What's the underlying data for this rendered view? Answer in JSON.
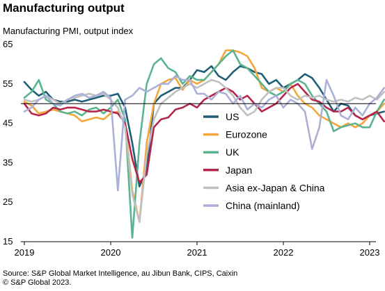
{
  "title": "Manufacturing output",
  "subtitle": "Manufacturing  PMI, output index",
  "source_line1": "Source: S&P Global Market Intelligence, au Jibun Bank, CIPS, Caixin",
  "source_line2": "© S&P Global 2023.",
  "chart_data": {
    "type": "line",
    "ylim": [
      15,
      65
    ],
    "yticks": [
      15,
      25,
      35,
      45,
      55,
      65
    ],
    "xlim": [
      "2019-01",
      "2023-03"
    ],
    "xticks": [
      "2019",
      "2020",
      "2021",
      "2022",
      "2023"
    ],
    "reference_line": 50,
    "legend_position": "lower-right",
    "grid": false,
    "series": [
      {
        "name": "US",
        "color": "#1f5f77",
        "values": [
          [
            0,
            55.5
          ],
          [
            1,
            53.5
          ],
          [
            2,
            52
          ],
          [
            3,
            53
          ],
          [
            4,
            51
          ],
          [
            5,
            50.5
          ],
          [
            6,
            50.5
          ],
          [
            7,
            51
          ],
          [
            8,
            50.5
          ],
          [
            9,
            51
          ],
          [
            10,
            51.5
          ],
          [
            11,
            52
          ],
          [
            12,
            52
          ],
          [
            13,
            52.5
          ],
          [
            14,
            49
          ],
          [
            15,
            40
          ],
          [
            16,
            29
          ],
          [
            17,
            33
          ],
          [
            18,
            50
          ],
          [
            19,
            52
          ],
          [
            20,
            53
          ],
          [
            21,
            54
          ],
          [
            22,
            54
          ],
          [
            23,
            56
          ],
          [
            24,
            58.5
          ],
          [
            25,
            58
          ],
          [
            26,
            59.5
          ],
          [
            27,
            57
          ],
          [
            28,
            56
          ],
          [
            29,
            58
          ],
          [
            30,
            59.5
          ],
          [
            31,
            59
          ],
          [
            32,
            58
          ],
          [
            33,
            57.5
          ],
          [
            34,
            55
          ],
          [
            35,
            56
          ],
          [
            36,
            54
          ],
          [
            37,
            55
          ],
          [
            38,
            56
          ],
          [
            39,
            57.5
          ],
          [
            40,
            56.5
          ],
          [
            41,
            54
          ],
          [
            42,
            51
          ],
          [
            43,
            48
          ],
          [
            44,
            50
          ],
          [
            45,
            49.5
          ],
          [
            46,
            47
          ],
          [
            47,
            46
          ],
          [
            48,
            47
          ],
          [
            49,
            47.5
          ],
          [
            50,
            48
          ]
        ]
      },
      {
        "name": "Eurozone",
        "color": "#f5a53a",
        "values": [
          [
            0,
            50.5
          ],
          [
            1,
            49.5
          ],
          [
            2,
            47.5
          ],
          [
            3,
            48
          ],
          [
            4,
            48.5
          ],
          [
            5,
            48
          ],
          [
            6,
            47.5
          ],
          [
            7,
            47
          ],
          [
            8,
            45.5
          ],
          [
            9,
            46
          ],
          [
            10,
            46.5
          ],
          [
            11,
            46
          ],
          [
            12,
            47.5
          ],
          [
            13,
            48
          ],
          [
            14,
            45
          ],
          [
            15,
            28
          ],
          [
            16,
            20
          ],
          [
            17,
            40
          ],
          [
            18,
            50
          ],
          [
            19,
            55
          ],
          [
            20,
            56
          ],
          [
            21,
            56.5
          ],
          [
            22,
            53.5
          ],
          [
            23,
            56
          ],
          [
            24,
            55
          ],
          [
            25,
            56
          ],
          [
            26,
            58
          ],
          [
            27,
            60
          ],
          [
            28,
            63.5
          ],
          [
            29,
            63.5
          ],
          [
            30,
            63
          ],
          [
            31,
            62
          ],
          [
            32,
            59
          ],
          [
            33,
            54
          ],
          [
            34,
            53
          ],
          [
            35,
            54
          ],
          [
            36,
            53
          ],
          [
            37,
            55
          ],
          [
            38,
            52
          ],
          [
            39,
            50
          ],
          [
            40,
            49
          ],
          [
            41,
            47
          ],
          [
            42,
            46
          ],
          [
            43,
            45
          ],
          [
            44,
            44
          ],
          [
            45,
            45
          ],
          [
            46,
            44
          ],
          [
            47,
            45
          ],
          [
            48,
            47
          ],
          [
            49,
            48
          ],
          [
            50,
            50
          ]
        ]
      },
      {
        "name": "UK",
        "color": "#5ab58e",
        "values": [
          [
            0,
            51.5
          ],
          [
            1,
            53
          ],
          [
            2,
            56
          ],
          [
            3,
            51
          ],
          [
            4,
            50
          ],
          [
            5,
            48
          ],
          [
            6,
            47.5
          ],
          [
            7,
            48
          ],
          [
            8,
            47
          ],
          [
            9,
            48.5
          ],
          [
            10,
            49
          ],
          [
            11,
            47.5
          ],
          [
            12,
            49
          ],
          [
            13,
            51
          ],
          [
            14,
            46
          ],
          [
            15,
            16
          ],
          [
            16,
            40
          ],
          [
            17,
            55
          ],
          [
            18,
            60
          ],
          [
            19,
            61.5
          ],
          [
            20,
            59
          ],
          [
            21,
            58
          ],
          [
            22,
            55
          ],
          [
            23,
            57
          ],
          [
            24,
            56
          ],
          [
            25,
            56
          ],
          [
            26,
            58
          ],
          [
            27,
            60
          ],
          [
            28,
            62
          ],
          [
            29,
            63.5
          ],
          [
            30,
            60
          ],
          [
            31,
            59
          ],
          [
            32,
            57
          ],
          [
            33,
            55
          ],
          [
            34,
            53
          ],
          [
            35,
            52
          ],
          [
            36,
            53
          ],
          [
            37,
            55
          ],
          [
            38,
            56
          ],
          [
            39,
            55
          ],
          [
            40,
            52
          ],
          [
            41,
            50
          ],
          [
            42,
            48
          ],
          [
            43,
            43
          ],
          [
            44,
            44
          ],
          [
            45,
            44.5
          ],
          [
            46,
            45
          ],
          [
            47,
            44
          ],
          [
            48,
            44
          ],
          [
            49,
            48
          ],
          [
            50,
            51
          ]
        ]
      },
      {
        "name": "Japan",
        "color": "#b5264a",
        "values": [
          [
            0,
            50
          ],
          [
            1,
            47.5
          ],
          [
            2,
            47
          ],
          [
            3,
            47.5
          ],
          [
            4,
            49
          ],
          [
            5,
            48.5
          ],
          [
            6,
            49
          ],
          [
            7,
            49
          ],
          [
            8,
            48.5
          ],
          [
            9,
            48
          ],
          [
            10,
            48
          ],
          [
            11,
            48.5
          ],
          [
            12,
            48
          ],
          [
            13,
            47.5
          ],
          [
            14,
            45
          ],
          [
            15,
            36
          ],
          [
            16,
            30
          ],
          [
            17,
            32
          ],
          [
            18,
            44
          ],
          [
            19,
            46
          ],
          [
            20,
            46.5
          ],
          [
            21,
            48.5
          ],
          [
            22,
            49
          ],
          [
            23,
            50
          ],
          [
            24,
            49
          ],
          [
            25,
            51
          ],
          [
            26,
            52
          ],
          [
            27,
            53
          ],
          [
            28,
            54
          ],
          [
            29,
            53
          ],
          [
            30,
            51
          ],
          [
            31,
            52
          ],
          [
            32,
            50
          ],
          [
            33,
            48
          ],
          [
            34,
            49
          ],
          [
            35,
            50
          ],
          [
            36,
            52
          ],
          [
            37,
            54
          ],
          [
            38,
            55
          ],
          [
            39,
            53
          ],
          [
            40,
            51
          ],
          [
            41,
            50.5
          ],
          [
            42,
            49
          ],
          [
            43,
            48
          ],
          [
            44,
            48
          ],
          [
            45,
            49
          ],
          [
            46,
            47
          ],
          [
            47,
            46
          ],
          [
            48,
            47
          ],
          [
            49,
            48
          ],
          [
            50,
            45.5
          ]
        ]
      },
      {
        "name": "Asia ex-Japan & China",
        "color": "#c0c0c0",
        "values": [
          [
            0,
            51
          ],
          [
            1,
            50.5
          ],
          [
            2,
            51
          ],
          [
            3,
            52
          ],
          [
            4,
            51
          ],
          [
            5,
            50
          ],
          [
            6,
            51
          ],
          [
            7,
            51.5
          ],
          [
            8,
            52
          ],
          [
            9,
            52.5
          ],
          [
            10,
            52
          ],
          [
            11,
            52.5
          ],
          [
            12,
            51
          ],
          [
            13,
            49
          ],
          [
            14,
            44
          ],
          [
            15,
            27
          ],
          [
            16,
            20
          ],
          [
            17,
            37
          ],
          [
            18,
            46
          ],
          [
            19,
            50
          ],
          [
            20,
            51.5
          ],
          [
            21,
            53
          ],
          [
            22,
            54
          ],
          [
            23,
            55
          ],
          [
            24,
            54
          ],
          [
            25,
            55
          ],
          [
            26,
            56
          ],
          [
            27,
            55.5
          ],
          [
            28,
            54
          ],
          [
            29,
            52
          ],
          [
            30,
            49
          ],
          [
            31,
            47
          ],
          [
            32,
            48
          ],
          [
            33,
            51
          ],
          [
            34,
            53
          ],
          [
            35,
            54
          ],
          [
            36,
            54
          ],
          [
            37,
            52
          ],
          [
            38,
            51
          ],
          [
            39,
            52
          ],
          [
            40,
            51.5
          ],
          [
            41,
            52
          ],
          [
            42,
            51
          ],
          [
            43,
            50.5
          ],
          [
            44,
            51
          ],
          [
            45,
            50.5
          ],
          [
            46,
            51.5
          ],
          [
            47,
            51
          ],
          [
            48,
            52
          ],
          [
            49,
            51
          ],
          [
            50,
            53
          ]
        ]
      },
      {
        "name": "China (mainland)",
        "color": "#aab0d8",
        "values": [
          [
            0,
            48
          ],
          [
            1,
            49
          ],
          [
            2,
            51
          ],
          [
            3,
            52
          ],
          [
            4,
            50
          ],
          [
            5,
            49.5
          ],
          [
            6,
            51
          ],
          [
            7,
            52
          ],
          [
            8,
            52.5
          ],
          [
            9,
            51.5
          ],
          [
            10,
            52
          ],
          [
            11,
            53
          ],
          [
            12,
            51.5
          ],
          [
            13,
            28
          ],
          [
            14,
            51
          ],
          [
            15,
            52
          ],
          [
            16,
            54
          ],
          [
            17,
            53
          ],
          [
            18,
            54
          ],
          [
            19,
            55
          ],
          [
            20,
            55
          ],
          [
            21,
            57
          ],
          [
            22,
            56
          ],
          [
            23,
            56
          ],
          [
            24,
            52.5
          ],
          [
            25,
            52.5
          ],
          [
            26,
            51
          ],
          [
            27,
            53
          ],
          [
            28,
            52.5
          ],
          [
            29,
            50
          ],
          [
            30,
            52
          ],
          [
            31,
            48.5
          ],
          [
            32,
            50
          ],
          [
            33,
            49
          ],
          [
            34,
            51
          ],
          [
            35,
            52
          ],
          [
            36,
            49
          ],
          [
            37,
            51
          ],
          [
            38,
            50
          ],
          [
            39,
            48
          ],
          [
            40,
            38.5
          ],
          [
            41,
            44
          ],
          [
            42,
            56
          ],
          [
            43,
            52
          ],
          [
            44,
            47
          ],
          [
            45,
            46
          ],
          [
            46,
            49
          ],
          [
            47,
            47
          ],
          [
            48,
            50
          ],
          [
            49,
            51.5
          ],
          [
            50,
            54
          ]
        ]
      }
    ]
  }
}
